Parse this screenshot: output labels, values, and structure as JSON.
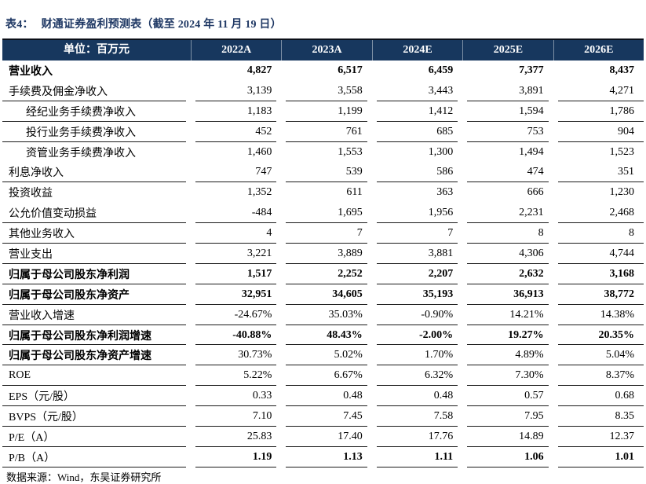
{
  "page": {
    "title_prefix": "表4：",
    "title_text": "财通证券盈利预测表（截至 2024 年 11 月 19 日）",
    "source_note": "数据来源：Wind，东吴证券研究所"
  },
  "colors": {
    "header_bg": "#17375E",
    "title_text": "#1F3864",
    "header_text": "#FFFFFF",
    "body_text": "#000000",
    "rule_line": "#1A1A1A"
  },
  "table": {
    "unit_label": "单位：百万元",
    "year_columns": [
      "2022A",
      "2023A",
      "2024E",
      "2025E",
      "2026E"
    ],
    "rows": [
      {
        "label": "营业收入",
        "values": [
          "4,827",
          "6,517",
          "6,459",
          "7,377",
          "8,437"
        ],
        "bold": "all",
        "indent": false,
        "bottom_border": false
      },
      {
        "label": "手续费及佣金净收入",
        "values": [
          "3,139",
          "3,558",
          "3,443",
          "3,891",
          "4,271"
        ],
        "bold": "none",
        "indent": false,
        "bottom_border": true
      },
      {
        "label": "经纪业务手续费净收入",
        "values": [
          "1,183",
          "1,199",
          "1,412",
          "1,594",
          "1,786"
        ],
        "bold": "none",
        "indent": true,
        "bottom_border": true
      },
      {
        "label": "投行业务手续费净收入",
        "values": [
          "452",
          "761",
          "685",
          "753",
          "904"
        ],
        "bold": "none",
        "indent": true,
        "bottom_border": true
      },
      {
        "label": "资管业务手续费净收入",
        "values": [
          "1,460",
          "1,553",
          "1,300",
          "1,494",
          "1,523"
        ],
        "bold": "none",
        "indent": true,
        "bottom_border": false
      },
      {
        "label": "利息净收入",
        "values": [
          "747",
          "539",
          "586",
          "474",
          "351"
        ],
        "bold": "none",
        "indent": false,
        "bottom_border": true
      },
      {
        "label": "投资收益",
        "values": [
          "1,352",
          "611",
          "363",
          "666",
          "1,230"
        ],
        "bold": "none",
        "indent": false,
        "bottom_border": false
      },
      {
        "label": "公允价值变动损益",
        "values": [
          "-484",
          "1,695",
          "1,956",
          "2,231",
          "2,468"
        ],
        "bold": "none",
        "indent": false,
        "bottom_border": true
      },
      {
        "label": "其他业务收入",
        "values": [
          "4",
          "7",
          "7",
          "8",
          "8"
        ],
        "bold": "none",
        "indent": false,
        "bottom_border": true
      },
      {
        "label": "营业支出",
        "values": [
          "3,221",
          "3,889",
          "3,881",
          "4,306",
          "4,744"
        ],
        "bold": "none",
        "indent": false,
        "bottom_border": true
      },
      {
        "label": "归属于母公司股东净利润",
        "values": [
          "1,517",
          "2,252",
          "2,207",
          "2,632",
          "3,168"
        ],
        "bold": "all",
        "indent": false,
        "bottom_border": true
      },
      {
        "label": "归属于母公司股东净资产",
        "values": [
          "32,951",
          "34,605",
          "35,193",
          "36,913",
          "38,772"
        ],
        "bold": "all",
        "indent": false,
        "bottom_border": true
      },
      {
        "label": "营业收入增速",
        "values": [
          "-24.67%",
          "35.03%",
          "-0.90%",
          "14.21%",
          "14.38%"
        ],
        "bold": "none",
        "indent": false,
        "bottom_border": true
      },
      {
        "label": "归属于母公司股东净利润增速",
        "values": [
          "-40.88%",
          "48.43%",
          "-2.00%",
          "19.27%",
          "20.35%"
        ],
        "bold": "all",
        "indent": false,
        "bottom_border": true
      },
      {
        "label": "归属于母公司股东净资产增速",
        "values": [
          "30.73%",
          "5.02%",
          "1.70%",
          "4.89%",
          "5.04%"
        ],
        "bold": "label",
        "indent": false,
        "bottom_border": true
      },
      {
        "label": "ROE",
        "values": [
          "5.22%",
          "6.67%",
          "6.32%",
          "7.30%",
          "8.37%"
        ],
        "bold": "none",
        "indent": false,
        "bottom_border": true
      },
      {
        "label": "EPS（元/股）",
        "values": [
          "0.33",
          "0.48",
          "0.48",
          "0.57",
          "0.68"
        ],
        "bold": "none",
        "indent": false,
        "bottom_border": true
      },
      {
        "label": "BVPS（元/股）",
        "values": [
          "7.10",
          "7.45",
          "7.58",
          "7.95",
          "8.35"
        ],
        "bold": "none",
        "indent": false,
        "bottom_border": true
      },
      {
        "label": "P/E（A）",
        "values": [
          "25.83",
          "17.40",
          "17.76",
          "14.89",
          "12.37"
        ],
        "bold": "none",
        "indent": false,
        "bottom_border": true
      },
      {
        "label": "P/B（A）",
        "values": [
          "1.19",
          "1.13",
          "1.11",
          "1.06",
          "1.01"
        ],
        "bold": "values",
        "indent": false,
        "bottom_border": true
      }
    ]
  }
}
